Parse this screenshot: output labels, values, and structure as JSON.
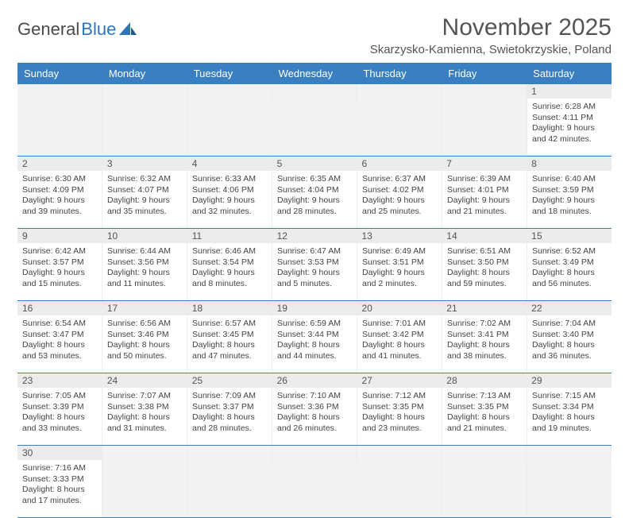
{
  "logo": {
    "text1": "General",
    "text2": "Blue"
  },
  "title": "November 2025",
  "location": "Skarzysko-Kamienna, Swietokrzyskie, Poland",
  "colors": {
    "header_bg": "#3a7fc1",
    "header_text": "#ffffff",
    "daynum_bg": "#ececec",
    "border": "#3a7fc1",
    "text": "#444444",
    "logo_gray": "#4a4a4a",
    "logo_blue": "#2d76bb"
  },
  "day_names": [
    "Sunday",
    "Monday",
    "Tuesday",
    "Wednesday",
    "Thursday",
    "Friday",
    "Saturday"
  ],
  "weeks": [
    {
      "nums": [
        "",
        "",
        "",
        "",
        "",
        "",
        "1"
      ],
      "cells": [
        null,
        null,
        null,
        null,
        null,
        null,
        {
          "sunrise": "Sunrise: 6:28 AM",
          "sunset": "Sunset: 4:11 PM",
          "day1": "Daylight: 9 hours",
          "day2": "and 42 minutes."
        }
      ]
    },
    {
      "nums": [
        "2",
        "3",
        "4",
        "5",
        "6",
        "7",
        "8"
      ],
      "cells": [
        {
          "sunrise": "Sunrise: 6:30 AM",
          "sunset": "Sunset: 4:09 PM",
          "day1": "Daylight: 9 hours",
          "day2": "and 39 minutes."
        },
        {
          "sunrise": "Sunrise: 6:32 AM",
          "sunset": "Sunset: 4:07 PM",
          "day1": "Daylight: 9 hours",
          "day2": "and 35 minutes."
        },
        {
          "sunrise": "Sunrise: 6:33 AM",
          "sunset": "Sunset: 4:06 PM",
          "day1": "Daylight: 9 hours",
          "day2": "and 32 minutes."
        },
        {
          "sunrise": "Sunrise: 6:35 AM",
          "sunset": "Sunset: 4:04 PM",
          "day1": "Daylight: 9 hours",
          "day2": "and 28 minutes."
        },
        {
          "sunrise": "Sunrise: 6:37 AM",
          "sunset": "Sunset: 4:02 PM",
          "day1": "Daylight: 9 hours",
          "day2": "and 25 minutes."
        },
        {
          "sunrise": "Sunrise: 6:39 AM",
          "sunset": "Sunset: 4:01 PM",
          "day1": "Daylight: 9 hours",
          "day2": "and 21 minutes."
        },
        {
          "sunrise": "Sunrise: 6:40 AM",
          "sunset": "Sunset: 3:59 PM",
          "day1": "Daylight: 9 hours",
          "day2": "and 18 minutes."
        }
      ]
    },
    {
      "nums": [
        "9",
        "10",
        "11",
        "12",
        "13",
        "14",
        "15"
      ],
      "cells": [
        {
          "sunrise": "Sunrise: 6:42 AM",
          "sunset": "Sunset: 3:57 PM",
          "day1": "Daylight: 9 hours",
          "day2": "and 15 minutes."
        },
        {
          "sunrise": "Sunrise: 6:44 AM",
          "sunset": "Sunset: 3:56 PM",
          "day1": "Daylight: 9 hours",
          "day2": "and 11 minutes."
        },
        {
          "sunrise": "Sunrise: 6:46 AM",
          "sunset": "Sunset: 3:54 PM",
          "day1": "Daylight: 9 hours",
          "day2": "and 8 minutes."
        },
        {
          "sunrise": "Sunrise: 6:47 AM",
          "sunset": "Sunset: 3:53 PM",
          "day1": "Daylight: 9 hours",
          "day2": "and 5 minutes."
        },
        {
          "sunrise": "Sunrise: 6:49 AM",
          "sunset": "Sunset: 3:51 PM",
          "day1": "Daylight: 9 hours",
          "day2": "and 2 minutes."
        },
        {
          "sunrise": "Sunrise: 6:51 AM",
          "sunset": "Sunset: 3:50 PM",
          "day1": "Daylight: 8 hours",
          "day2": "and 59 minutes."
        },
        {
          "sunrise": "Sunrise: 6:52 AM",
          "sunset": "Sunset: 3:49 PM",
          "day1": "Daylight: 8 hours",
          "day2": "and 56 minutes."
        }
      ]
    },
    {
      "nums": [
        "16",
        "17",
        "18",
        "19",
        "20",
        "21",
        "22"
      ],
      "cells": [
        {
          "sunrise": "Sunrise: 6:54 AM",
          "sunset": "Sunset: 3:47 PM",
          "day1": "Daylight: 8 hours",
          "day2": "and 53 minutes."
        },
        {
          "sunrise": "Sunrise: 6:56 AM",
          "sunset": "Sunset: 3:46 PM",
          "day1": "Daylight: 8 hours",
          "day2": "and 50 minutes."
        },
        {
          "sunrise": "Sunrise: 6:57 AM",
          "sunset": "Sunset: 3:45 PM",
          "day1": "Daylight: 8 hours",
          "day2": "and 47 minutes."
        },
        {
          "sunrise": "Sunrise: 6:59 AM",
          "sunset": "Sunset: 3:44 PM",
          "day1": "Daylight: 8 hours",
          "day2": "and 44 minutes."
        },
        {
          "sunrise": "Sunrise: 7:01 AM",
          "sunset": "Sunset: 3:42 PM",
          "day1": "Daylight: 8 hours",
          "day2": "and 41 minutes."
        },
        {
          "sunrise": "Sunrise: 7:02 AM",
          "sunset": "Sunset: 3:41 PM",
          "day1": "Daylight: 8 hours",
          "day2": "and 38 minutes."
        },
        {
          "sunrise": "Sunrise: 7:04 AM",
          "sunset": "Sunset: 3:40 PM",
          "day1": "Daylight: 8 hours",
          "day2": "and 36 minutes."
        }
      ]
    },
    {
      "nums": [
        "23",
        "24",
        "25",
        "26",
        "27",
        "28",
        "29"
      ],
      "cells": [
        {
          "sunrise": "Sunrise: 7:05 AM",
          "sunset": "Sunset: 3:39 PM",
          "day1": "Daylight: 8 hours",
          "day2": "and 33 minutes."
        },
        {
          "sunrise": "Sunrise: 7:07 AM",
          "sunset": "Sunset: 3:38 PM",
          "day1": "Daylight: 8 hours",
          "day2": "and 31 minutes."
        },
        {
          "sunrise": "Sunrise: 7:09 AM",
          "sunset": "Sunset: 3:37 PM",
          "day1": "Daylight: 8 hours",
          "day2": "and 28 minutes."
        },
        {
          "sunrise": "Sunrise: 7:10 AM",
          "sunset": "Sunset: 3:36 PM",
          "day1": "Daylight: 8 hours",
          "day2": "and 26 minutes."
        },
        {
          "sunrise": "Sunrise: 7:12 AM",
          "sunset": "Sunset: 3:35 PM",
          "day1": "Daylight: 8 hours",
          "day2": "and 23 minutes."
        },
        {
          "sunrise": "Sunrise: 7:13 AM",
          "sunset": "Sunset: 3:35 PM",
          "day1": "Daylight: 8 hours",
          "day2": "and 21 minutes."
        },
        {
          "sunrise": "Sunrise: 7:15 AM",
          "sunset": "Sunset: 3:34 PM",
          "day1": "Daylight: 8 hours",
          "day2": "and 19 minutes."
        }
      ]
    },
    {
      "nums": [
        "30",
        "",
        "",
        "",
        "",
        "",
        ""
      ],
      "cells": [
        {
          "sunrise": "Sunrise: 7:16 AM",
          "sunset": "Sunset: 3:33 PM",
          "day1": "Daylight: 8 hours",
          "day2": "and 17 minutes."
        },
        null,
        null,
        null,
        null,
        null,
        null
      ]
    }
  ]
}
